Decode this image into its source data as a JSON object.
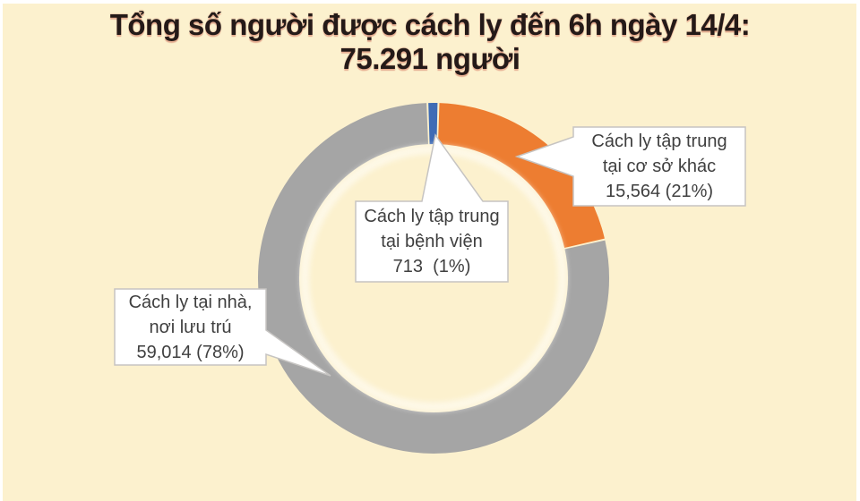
{
  "title": {
    "line1": "Tổng số người được cách ly đến 6h ngày 14/4:",
    "line2": "75.291 người",
    "color": "#241A18"
  },
  "background_color": "#FCF1CE",
  "chart_data": {
    "type": "pie",
    "subtype": "donut",
    "title": "Tổng số người được cách ly đến 6h ngày 14/4: 75.291 người",
    "total_label": "75.291 người",
    "start_angle_deg": -2,
    "direction": "clockwise",
    "legend_position": "callout-labels",
    "segments": [
      {
        "label": "Cách ly tập trung tại bệnh viện",
        "value": 713,
        "pct": 1,
        "color": "#3F6CB5"
      },
      {
        "label": "Cách ly tập trung tại cơ sở khác",
        "value": 15564,
        "pct": 21,
        "color": "#ED7D31"
      },
      {
        "label": "Cách ly tại nhà, nơi lưu trú",
        "value": 59014,
        "pct": 78,
        "color": "#A5A5A5"
      }
    ]
  },
  "callouts": {
    "hospital": {
      "lines": [
        "Cách ly tập trung",
        "tại bệnh viện",
        "713  (1%)"
      ]
    },
    "facility": {
      "lines": [
        "Cách ly tập trung",
        "tại cơ sở khác",
        "15,564 (21%)"
      ]
    },
    "home": {
      "lines": [
        "Cách ly tại nhà,",
        "nơi lưu trú",
        "59,014 (78%)"
      ]
    }
  },
  "callout_style": {
    "fill": "#FFFFFF",
    "border": "#C6C4C2",
    "text_color": "#3F3F3F"
  }
}
